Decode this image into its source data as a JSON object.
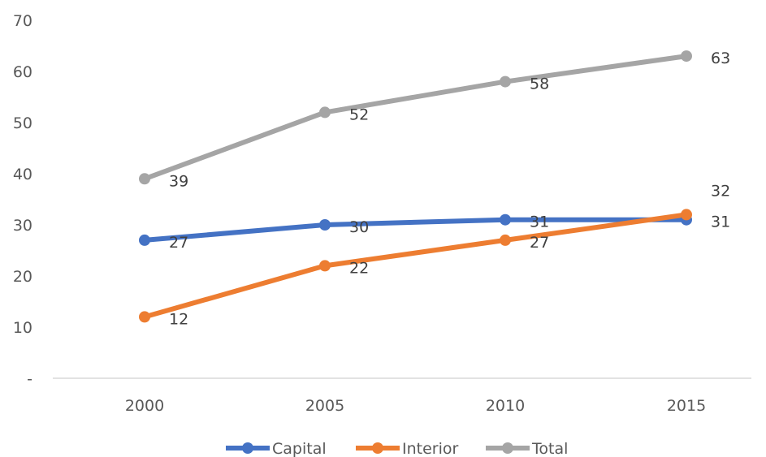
{
  "chart_data": {
    "type": "line",
    "title": "",
    "xlabel": "",
    "ylabel": "",
    "categories": [
      "2000",
      "2005",
      "2010",
      "2015"
    ],
    "ylim": [
      0,
      70
    ],
    "yticks": [
      "-",
      "10",
      "20",
      "30",
      "40",
      "50",
      "60",
      "70"
    ],
    "grid": false,
    "legend_position": "bottom",
    "data_labels": true,
    "series": [
      {
        "name": "Capital",
        "color": "#4472C4",
        "values": [
          27,
          30,
          31,
          31
        ]
      },
      {
        "name": "Interior",
        "color": "#ED7D31",
        "values": [
          12,
          22,
          27,
          32
        ]
      },
      {
        "name": "Total",
        "color": "#A5A5A5",
        "values": [
          39,
          52,
          58,
          63
        ]
      }
    ],
    "axis_color": "#D9D9D9"
  }
}
